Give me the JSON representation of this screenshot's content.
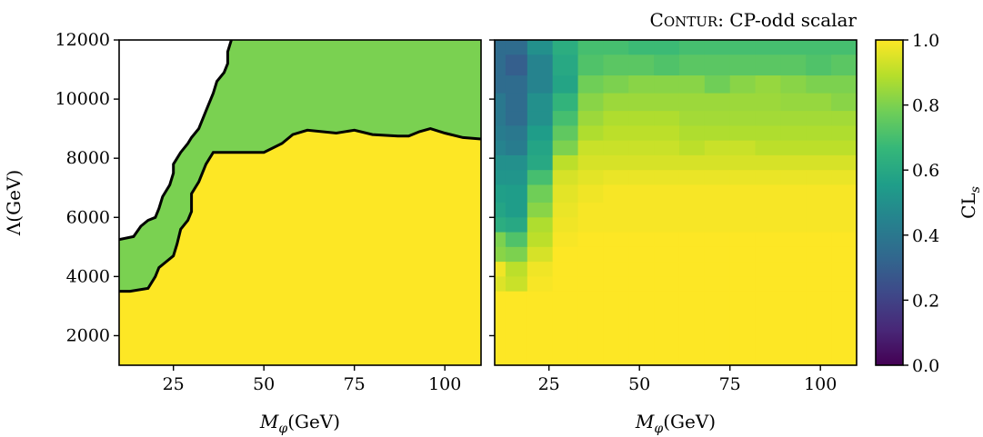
{
  "figure": {
    "title_sc_big": "C",
    "title_sc_small": "ONTUR",
    "title_rest": ": CP-odd scalar"
  },
  "chart_data": [
    {
      "type": "area",
      "panel": "left",
      "xlabel_symbol": "M",
      "xlabel_sub": "φ",
      "xlabel_unit": "(GeV)",
      "ylabel": "Λ(GeV)",
      "xlim": [
        10,
        110
      ],
      "ylim": [
        1000,
        12000
      ],
      "xticks": [
        25,
        50,
        75,
        100
      ],
      "yticks": [
        2000,
        4000,
        6000,
        8000,
        10000,
        12000
      ],
      "regions": [
        {
          "name": "excluded_95",
          "color": "#fde725"
        },
        {
          "name": "excluded_68",
          "color": "#7ad151"
        },
        {
          "name": "allowed",
          "color": "#ffffff"
        }
      ],
      "contour_95": {
        "x": [
          10,
          13,
          18,
          20,
          21,
          23,
          25,
          26,
          27,
          29,
          30,
          30,
          32,
          34,
          36,
          40,
          50,
          55,
          58,
          62,
          70,
          75,
          80,
          87,
          90,
          93,
          96,
          100,
          105,
          110
        ],
        "y": [
          3500,
          3500,
          3600,
          4000,
          4300,
          4500,
          4700,
          5100,
          5600,
          5900,
          6200,
          6800,
          7200,
          7800,
          8200,
          8200,
          8200,
          8500,
          8800,
          8950,
          8850,
          8950,
          8800,
          8750,
          8750,
          8900,
          9000,
          8850,
          8700,
          8650
        ]
      },
      "contour_68": {
        "x": [
          10,
          14,
          16,
          18,
          20,
          21,
          22,
          24,
          25,
          25,
          27,
          29,
          30,
          32,
          34,
          36,
          37,
          39,
          40,
          40,
          41
        ],
        "y": [
          5250,
          5350,
          5700,
          5900,
          6000,
          6300,
          6700,
          7100,
          7500,
          7800,
          8200,
          8500,
          8700,
          9000,
          9600,
          10200,
          10600,
          10900,
          11200,
          11600,
          12000
        ]
      }
    },
    {
      "type": "heatmap",
      "panel": "right",
      "xlabel_symbol": "M",
      "xlabel_sub": "φ",
      "xlabel_unit": "(GeV)",
      "xlim": [
        10,
        110
      ],
      "ylim": [
        1000,
        12000
      ],
      "xticks": [
        25,
        50,
        75,
        100
      ],
      "colorbar_label": "CL",
      "colorbar_sub": "s",
      "colorbar_range": [
        0,
        1
      ],
      "colorbar_ticks": [
        0.0,
        0.2,
        0.4,
        0.6,
        0.8,
        1.0
      ],
      "colorbar_tick_labels": [
        "0.0",
        "0.2",
        "0.4",
        "0.6",
        "0.8",
        "1.0"
      ],
      "x_edges": [
        10,
        13,
        19,
        26,
        33,
        40,
        47,
        54,
        61,
        68,
        75,
        82,
        89,
        96,
        103,
        110
      ],
      "y_edges": [
        12000,
        11500,
        10800,
        10200,
        9600,
        9100,
        8600,
        8100,
        7600,
        7100,
        6500,
        6000,
        5500,
        5000,
        4500,
        4000,
        3500,
        1000
      ],
      "values": [
        [
          0.35,
          0.35,
          0.5,
          0.62,
          0.7,
          0.7,
          0.68,
          0.68,
          0.7,
          0.7,
          0.7,
          0.7,
          0.7,
          0.7,
          0.7
        ],
        [
          0.35,
          0.3,
          0.45,
          0.6,
          0.72,
          0.74,
          0.74,
          0.72,
          0.74,
          0.74,
          0.74,
          0.74,
          0.74,
          0.72,
          0.74
        ],
        [
          0.35,
          0.35,
          0.45,
          0.58,
          0.78,
          0.8,
          0.82,
          0.82,
          0.82,
          0.78,
          0.82,
          0.84,
          0.82,
          0.8,
          0.8
        ],
        [
          0.4,
          0.35,
          0.5,
          0.65,
          0.82,
          0.85,
          0.85,
          0.85,
          0.85,
          0.85,
          0.85,
          0.85,
          0.84,
          0.84,
          0.82
        ],
        [
          0.4,
          0.35,
          0.5,
          0.7,
          0.85,
          0.88,
          0.88,
          0.88,
          0.86,
          0.86,
          0.86,
          0.86,
          0.86,
          0.86,
          0.86
        ],
        [
          0.42,
          0.4,
          0.55,
          0.75,
          0.88,
          0.9,
          0.9,
          0.9,
          0.88,
          0.88,
          0.88,
          0.88,
          0.88,
          0.88,
          0.88
        ],
        [
          0.45,
          0.42,
          0.58,
          0.8,
          0.92,
          0.92,
          0.92,
          0.92,
          0.9,
          0.92,
          0.92,
          0.9,
          0.9,
          0.9,
          0.9
        ],
        [
          0.5,
          0.5,
          0.6,
          0.9,
          0.94,
          0.94,
          0.94,
          0.94,
          0.94,
          0.94,
          0.94,
          0.94,
          0.94,
          0.94,
          0.94
        ],
        [
          0.52,
          0.52,
          0.7,
          0.94,
          0.96,
          0.97,
          0.97,
          0.97,
          0.97,
          0.97,
          0.97,
          0.97,
          0.97,
          0.97,
          0.97
        ],
        [
          0.56,
          0.55,
          0.78,
          0.96,
          0.98,
          0.99,
          0.99,
          0.99,
          0.99,
          0.99,
          0.99,
          0.99,
          0.99,
          0.99,
          0.99
        ],
        [
          0.58,
          0.55,
          0.82,
          0.97,
          0.99,
          0.99,
          0.99,
          0.99,
          0.99,
          0.99,
          0.99,
          0.99,
          0.99,
          0.99,
          0.99
        ],
        [
          0.62,
          0.6,
          0.88,
          0.98,
          0.99,
          0.99,
          0.99,
          0.99,
          0.99,
          0.99,
          0.99,
          0.99,
          0.99,
          0.99,
          0.99
        ],
        [
          0.8,
          0.72,
          0.9,
          0.99,
          1.0,
          1.0,
          1.0,
          1.0,
          1.0,
          1.0,
          1.0,
          1.0,
          1.0,
          1.0,
          1.0
        ],
        [
          0.82,
          0.8,
          0.94,
          1.0,
          1.0,
          1.0,
          1.0,
          1.0,
          1.0,
          1.0,
          1.0,
          1.0,
          1.0,
          1.0,
          1.0
        ],
        [
          0.98,
          0.9,
          0.98,
          1.0,
          1.0,
          1.0,
          1.0,
          1.0,
          1.0,
          1.0,
          1.0,
          1.0,
          1.0,
          1.0,
          1.0
        ],
        [
          0.95,
          0.92,
          0.99,
          1.0,
          1.0,
          1.0,
          1.0,
          1.0,
          1.0,
          1.0,
          1.0,
          1.0,
          1.0,
          1.0,
          1.0
        ],
        [
          1.0,
          1.0,
          1.0,
          1.0,
          1.0,
          1.0,
          1.0,
          1.0,
          1.0,
          1.0,
          1.0,
          1.0,
          1.0,
          1.0,
          1.0
        ]
      ]
    }
  ],
  "colormap": {
    "name": "viridis",
    "stops": [
      "#440154",
      "#482878",
      "#3e4989",
      "#31688e",
      "#26828e",
      "#1f9e89",
      "#35b779",
      "#6ece58",
      "#b5de2b",
      "#fde725"
    ]
  }
}
